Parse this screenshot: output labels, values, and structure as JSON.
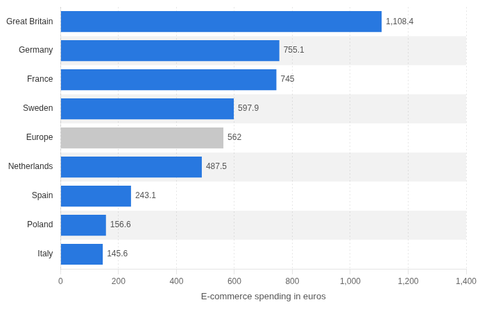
{
  "chart_data": {
    "type": "bar",
    "orientation": "horizontal",
    "categories": [
      "Great Britain",
      "Germany",
      "France",
      "Sweden",
      "Europe",
      "Netherlands",
      "Spain",
      "Poland",
      "Italy"
    ],
    "values": [
      1108.4,
      755.1,
      745,
      597.9,
      562,
      487.5,
      243.1,
      156.6,
      145.6
    ],
    "value_labels": [
      "1,108.4",
      "755.1",
      "745",
      "597.9",
      "562",
      "487.5",
      "243.1",
      "156.6",
      "145.6"
    ],
    "data_labels": true,
    "colors": [
      "#2878e0",
      "#2878e0",
      "#2878e0",
      "#2878e0",
      "#c8c8c8",
      "#2878e0",
      "#2878e0",
      "#2878e0",
      "#2878e0"
    ],
    "xlabel": "E-commerce spending in euros",
    "xlim": [
      0,
      1400
    ],
    "xticks": [
      0,
      200,
      400,
      600,
      800,
      {
        "value": 1000,
        "label": "1,000"
      },
      {
        "value": 1200,
        "label": "1,200"
      },
      {
        "value": 1400,
        "label": "1,400"
      }
    ],
    "grid": true
  }
}
